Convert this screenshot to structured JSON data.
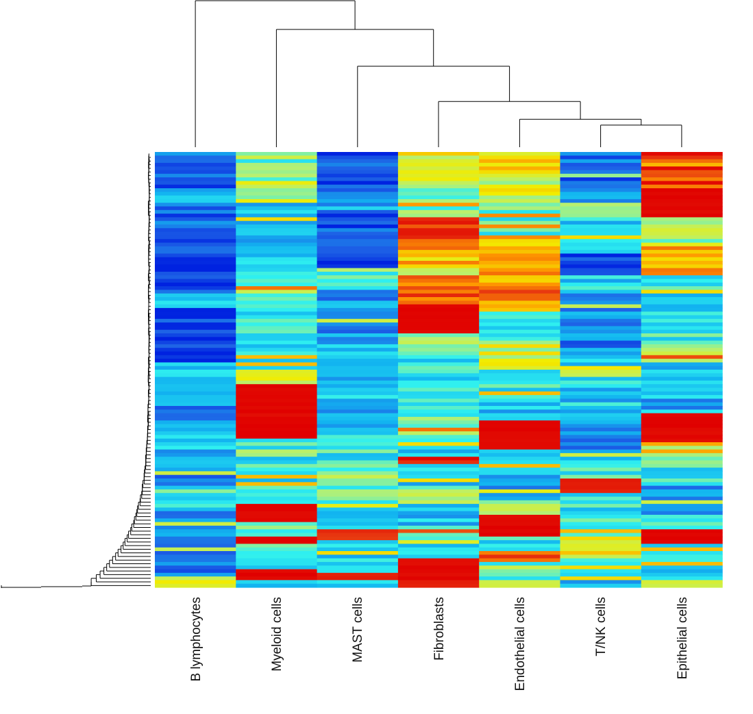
{
  "chart_data": {
    "type": "heatmap",
    "title": "",
    "xlabel": "",
    "ylabel": "",
    "columns": [
      "B lymphocytes",
      "Myeloid cells",
      "MAST cells",
      "Fibroblasts",
      "Endothelial cells",
      "T/NK cells",
      "Epithelial cells"
    ],
    "row_count": 120,
    "value_range": [
      0,
      1
    ],
    "colormap": [
      "#0022e0",
      "#1e63e6",
      "#12b4f0",
      "#2ff0f0",
      "#b8f070",
      "#f2ec00",
      "#ff9a00",
      "#e83a10",
      "#e00000"
    ],
    "column_dendrogram": {
      "merges": [
        [
          5,
          6,
          0.15
        ],
        [
          4,
          7,
          0.19
        ],
        [
          3,
          8,
          0.31
        ],
        [
          2,
          9,
          0.55
        ],
        [
          1,
          10,
          0.8
        ],
        [
          0,
          11,
          1.0
        ]
      ]
    },
    "row_dendrogram": true,
    "column_segments": [
      [
        [
          0,
          0.12
        ],
        [
          10,
          0.22
        ],
        [
          14,
          0.12
        ],
        [
          30,
          0.03
        ],
        [
          38,
          0.25
        ],
        [
          43,
          0.04
        ],
        [
          58,
          0.3
        ],
        [
          68,
          0.2
        ],
        [
          74,
          0.28
        ],
        [
          85,
          0.2
        ],
        [
          92,
          0.35
        ],
        [
          99,
          0.2
        ],
        [
          103,
          0.28
        ],
        [
          104,
          0.18
        ],
        [
          118,
          0.6
        ]
      ],
      [
        [
          0,
          0.45
        ],
        [
          8,
          0.52
        ],
        [
          14,
          0.3
        ],
        [
          28,
          0.32
        ],
        [
          35,
          0.45
        ],
        [
          42,
          0.35
        ],
        [
          60,
          0.6
        ],
        [
          64,
          1
        ],
        [
          79,
          0.4
        ],
        [
          84,
          0.35
        ],
        [
          92,
          0.45
        ],
        [
          97,
          1
        ],
        [
          102,
          0.4
        ],
        [
          106,
          1
        ],
        [
          108,
          0.5
        ],
        [
          110,
          0.3
        ],
        [
          115,
          1
        ],
        [
          118,
          0.3
        ]
      ],
      [
        [
          0,
          0.1
        ],
        [
          12,
          0.25
        ],
        [
          16,
          0.04
        ],
        [
          20,
          0.1
        ],
        [
          28,
          0.06
        ],
        [
          32,
          0.4
        ],
        [
          38,
          0.2
        ],
        [
          52,
          0.25
        ],
        [
          60,
          0.3
        ],
        [
          68,
          0.22
        ],
        [
          78,
          0.35
        ],
        [
          88,
          0.45
        ],
        [
          96,
          0.25
        ],
        [
          104,
          0.9
        ],
        [
          107,
          0.3
        ],
        [
          114,
          0.25
        ],
        [
          116,
          0.95
        ],
        [
          118,
          0.3
        ]
      ],
      [
        [
          0,
          0.6
        ],
        [
          8,
          0.48
        ],
        [
          14,
          0.4
        ],
        [
          18,
          0.9
        ],
        [
          27,
          0.7
        ],
        [
          32,
          0.5
        ],
        [
          34,
          0.82
        ],
        [
          42,
          1
        ],
        [
          50,
          0.5
        ],
        [
          55,
          0.35
        ],
        [
          70,
          0.45
        ],
        [
          78,
          0.3
        ],
        [
          84,
          0.85
        ],
        [
          86,
          0.3
        ],
        [
          92,
          0.45
        ],
        [
          97,
          0.3
        ],
        [
          104,
          0.5
        ],
        [
          108,
          0.35
        ],
        [
          112,
          1
        ],
        [
          118,
          0.95
        ]
      ],
      [
        [
          0,
          0.62
        ],
        [
          8,
          0.55
        ],
        [
          14,
          0.42
        ],
        [
          24,
          0.72
        ],
        [
          36,
          0.78
        ],
        [
          44,
          0.3
        ],
        [
          52,
          0.55
        ],
        [
          60,
          0.35
        ],
        [
          68,
          0.28
        ],
        [
          74,
          1
        ],
        [
          82,
          0.35
        ],
        [
          88,
          0.25
        ],
        [
          96,
          0.45
        ],
        [
          100,
          1
        ],
        [
          106,
          0.35
        ],
        [
          110,
          0.8
        ],
        [
          112,
          0.45
        ]
      ],
      [
        [
          0,
          0.12
        ],
        [
          8,
          0.25
        ],
        [
          14,
          0.5
        ],
        [
          18,
          0.3
        ],
        [
          28,
          0.04
        ],
        [
          34,
          0.3
        ],
        [
          38,
          0.18
        ],
        [
          56,
          0.28
        ],
        [
          60,
          0.6
        ],
        [
          62,
          0.3
        ],
        [
          74,
          0.25
        ],
        [
          78,
          0.2
        ],
        [
          84,
          0.35
        ],
        [
          90,
          0.95
        ],
        [
          94,
          0.35
        ],
        [
          106,
          0.6
        ],
        [
          112,
          0.3
        ]
      ],
      [
        [
          0,
          0.78
        ],
        [
          10,
          1
        ],
        [
          18,
          0.55
        ],
        [
          22,
          0.5
        ],
        [
          26,
          0.75
        ],
        [
          34,
          0.4
        ],
        [
          38,
          0.3
        ],
        [
          44,
          0.35
        ],
        [
          52,
          0.5
        ],
        [
          58,
          0.3
        ],
        [
          68,
          0.25
        ],
        [
          72,
          1
        ],
        [
          80,
          0.38
        ],
        [
          92,
          0.2
        ],
        [
          100,
          0.4
        ],
        [
          104,
          1
        ],
        [
          108,
          0.35
        ],
        [
          114,
          0.28
        ],
        [
          118,
          0.5
        ]
      ]
    ]
  },
  "labels": {
    "col_0": "B lymphocytes",
    "col_1": "Myeloid cells",
    "col_2": "MAST cells",
    "col_3": "Fibroblasts",
    "col_4": "Endothelial cells",
    "col_5": "T/NK cells",
    "col_6": "Epithelial cells"
  }
}
